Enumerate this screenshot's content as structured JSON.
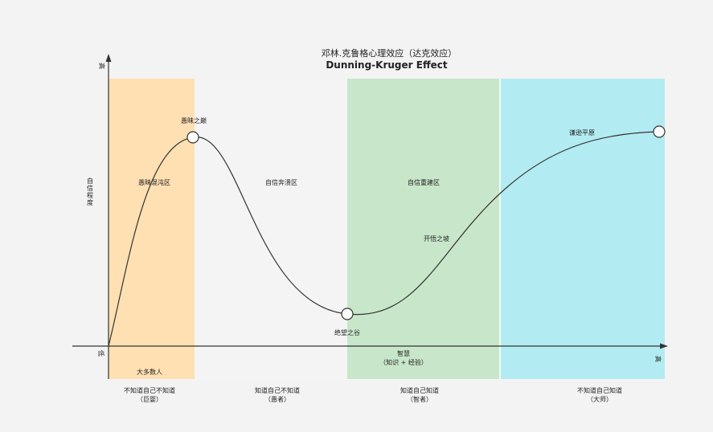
{
  "title": {
    "cn": "邓林.克鲁格心理效应（达克效应）",
    "en": "Dunning-Kruger Effect"
  },
  "axes": {
    "y_high": "高",
    "y_label": [
      "自",
      "信",
      "程",
      "度"
    ],
    "origin_low": "低",
    "x_label": "智慧",
    "x_sub": "（知识 + 经验）",
    "x_high": "高"
  },
  "zones": [
    {
      "name": "愚昧混沌区",
      "color": "#ffe0b3"
    },
    {
      "name": "自信奔溃区",
      "color": "#f4f4f4"
    },
    {
      "name": "自信重建区",
      "color": "#c8e6c9"
    },
    {
      "name": "",
      "color": "#b2ebf2"
    }
  ],
  "points": {
    "peak": "愚昧之巅",
    "valley": "绝望之谷",
    "slope": "开悟之坡",
    "plateau": "谦逊平原"
  },
  "majority": {
    "text": "大多数人",
    "color": "#e05a5a"
  },
  "stages": [
    {
      "line1": "不知道自己不知道",
      "line2": "（巨婴）"
    },
    {
      "line1": "知道自己不知道",
      "line2": "（愚者）"
    },
    {
      "line1": "知道自己知道",
      "line2": "（智者）"
    },
    {
      "line1": "不知道自己知道",
      "line2": "（大师）"
    }
  ]
}
